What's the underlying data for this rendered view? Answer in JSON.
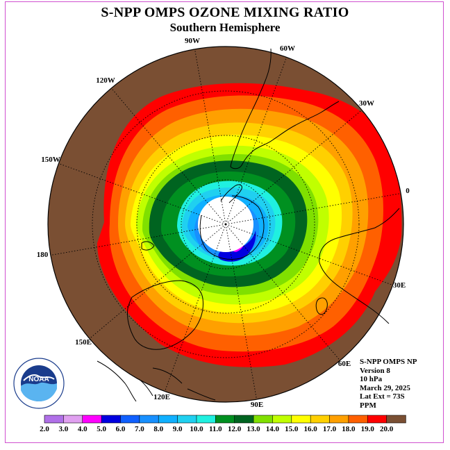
{
  "title": "S-NPP OMPS OZONE MIXING RATIO",
  "subtitle": "Southern Hemisphere",
  "longitude_labels": [
    "90W",
    "60W",
    "30W",
    "0",
    "30E",
    "60E",
    "90E",
    "120E",
    "150E",
    "180",
    "150W",
    "120W"
  ],
  "info": {
    "instrument": "S-NPP OMPS NP",
    "version": "Version 8",
    "level": "10 hPa",
    "date": "March 29, 2025",
    "lat_ext": "Lat Ext = 73S",
    "units": "PPM"
  },
  "logo": {
    "text": "NOAA",
    "ring_text": "NATIONAL OCEANIC AND ATMOSPHERIC ADMINISTRATION · U.S. DEPARTMENT OF COMMERCE"
  },
  "colorbar": {
    "labels": [
      "2.0",
      "3.0",
      "4.0",
      "5.0",
      "6.0",
      "7.0",
      "8.0",
      "9.0",
      "10.0",
      "11.0",
      "12.0",
      "13.0",
      "14.0",
      "15.0",
      "16.0",
      "17.0",
      "18.0",
      "19.0",
      "20.0"
    ],
    "colors": [
      "#b070e8",
      "#e0a0f0",
      "#ff00ff",
      "#0000e0",
      "#1060ff",
      "#1890ff",
      "#10b0ff",
      "#20d0f0",
      "#20f0e0",
      "#009020",
      "#006420",
      "#80e000",
      "#c0ff00",
      "#ffff00",
      "#ffd000",
      "#ffa000",
      "#ff6000",
      "#ff0000",
      "#7a4f33"
    ]
  },
  "colors": {
    "land_fill": "#7a4f33",
    "coast": "#000000",
    "frame": "#d050d0"
  }
}
